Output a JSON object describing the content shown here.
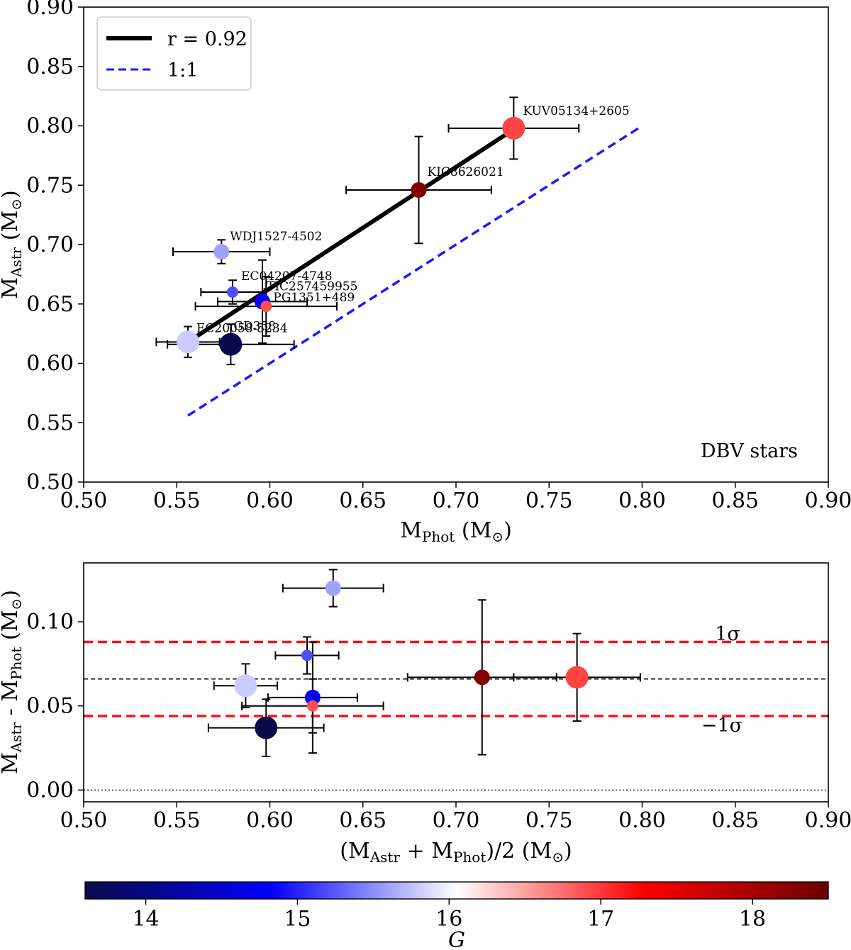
{
  "chart_data": [
    {
      "type": "scatter",
      "panel": "top",
      "xlabel": {
        "main": "M",
        "sub": "Phot",
        "unit": " (M",
        "unitsym": "⊙",
        "close": ")"
      },
      "ylabel": {
        "main": "M",
        "sub": "Astr",
        "unit": " (M",
        "unitsym": "⊙",
        "close": ")"
      },
      "xlim": [
        0.5,
        0.9
      ],
      "ylim": [
        0.5,
        0.9
      ],
      "xticks": [
        "0.50",
        "0.55",
        "0.60",
        "0.65",
        "0.70",
        "0.75",
        "0.80",
        "0.85",
        "0.90"
      ],
      "yticks": [
        "0.50",
        "0.55",
        "0.60",
        "0.65",
        "0.70",
        "0.75",
        "0.80",
        "0.85",
        "0.90"
      ],
      "annotation": "DBV stars",
      "legend": {
        "location": "top-left",
        "entries": [
          {
            "label": "r = 0.92",
            "style": "solid",
            "color": "#000000"
          },
          {
            "label": "1:1",
            "style": "dashed",
            "color": "#1a1aff"
          }
        ]
      },
      "fit_line": {
        "x": [
          0.556,
          0.731
        ],
        "y": [
          0.618,
          0.797
        ]
      },
      "one_to_one_line": {
        "x": [
          0.556,
          0.798
        ],
        "y": [
          0.556,
          0.798
        ]
      },
      "points": [
        {
          "name": "KUV05134+2605",
          "x": 0.731,
          "y": 0.798,
          "xerr": 0.035,
          "yerr": 0.026,
          "G": 16.95,
          "size": "large"
        },
        {
          "name": "KIC8626021",
          "x": 0.68,
          "y": 0.746,
          "xerr": 0.039,
          "yerr": 0.045,
          "G": 18.3,
          "size": "medium"
        },
        {
          "name": "WDJ1527-4502",
          "x": 0.574,
          "y": 0.694,
          "xerr": 0.026,
          "yerr": 0.01,
          "G": 15.6,
          "size": "medium"
        },
        {
          "name": "EC04207-4748",
          "x": 0.58,
          "y": 0.66,
          "xerr": 0.017,
          "yerr": 0.01,
          "G": 15.2,
          "size": "small"
        },
        {
          "name": "TIC257459955",
          "x": 0.596,
          "y": 0.652,
          "xerr": 0.024,
          "yerr": 0.035,
          "G": 14.8,
          "size": "medium"
        },
        {
          "name": "PG1351+489",
          "x": 0.598,
          "y": 0.648,
          "xerr": 0.038,
          "yerr": 0.025,
          "G": 16.9,
          "size": "small"
        },
        {
          "name": "EC20058-5234",
          "x": 0.556,
          "y": 0.618,
          "xerr": 0.017,
          "yerr": 0.013,
          "G": 15.8,
          "size": "large"
        },
        {
          "name": "GD358",
          "x": 0.579,
          "y": 0.616,
          "xerr": 0.034,
          "yerr": 0.017,
          "G": 13.6,
          "size": "large"
        }
      ]
    },
    {
      "type": "scatter",
      "panel": "bottom",
      "xlabel": {
        "main": "(M",
        "sub1": "Astr",
        "mid": " + M",
        "sub2": "Phot",
        "end": ")/2 (M",
        "unitsym": "⊙",
        "close": ")"
      },
      "ylabel": {
        "main": "M",
        "sub1": "Astr",
        "mid": " - M",
        "sub2": "Phot",
        "unit": " (M",
        "unitsym": "⊙",
        "close": ")"
      },
      "xlim": [
        0.5,
        0.9
      ],
      "ylim": [
        -0.007,
        0.135
      ],
      "xticks": [
        "0.50",
        "0.55",
        "0.60",
        "0.65",
        "0.70",
        "0.75",
        "0.80",
        "0.85",
        "0.90"
      ],
      "yticks": [
        "0.00",
        "0.05",
        "0.10"
      ],
      "mean_line": 0.066,
      "sigma_lines": {
        "plus": 0.088,
        "minus": 0.044
      },
      "zero_line": 0.0,
      "sigma_labels": {
        "plus": "1σ",
        "minus": "−1σ"
      },
      "points": [
        {
          "name": "KUV05134+2605",
          "x": 0.765,
          "y": 0.067,
          "xerr": 0.034,
          "yerr": 0.026,
          "G": 16.95,
          "size": "large"
        },
        {
          "name": "KIC8626021",
          "x": 0.714,
          "y": 0.067,
          "xerr": 0.04,
          "yerr": 0.046,
          "G": 18.3,
          "size": "medium"
        },
        {
          "name": "WDJ1527-4502",
          "x": 0.634,
          "y": 0.12,
          "xerr": 0.027,
          "yerr": 0.011,
          "G": 15.6,
          "size": "medium"
        },
        {
          "name": "EC04207-4748",
          "x": 0.62,
          "y": 0.08,
          "xerr": 0.017,
          "yerr": 0.011,
          "G": 15.2,
          "size": "small"
        },
        {
          "name": "TIC257459955",
          "x": 0.623,
          "y": 0.055,
          "xerr": 0.024,
          "yerr": 0.033,
          "G": 14.8,
          "size": "medium"
        },
        {
          "name": "PG1351+489",
          "x": 0.623,
          "y": 0.05,
          "xerr": 0.038,
          "yerr": 0.016,
          "G": 16.9,
          "size": "small"
        },
        {
          "name": "EC20058-5234",
          "x": 0.587,
          "y": 0.062,
          "xerr": 0.017,
          "yerr": 0.013,
          "G": 15.8,
          "size": "large"
        },
        {
          "name": "GD358",
          "x": 0.598,
          "y": 0.037,
          "xerr": 0.031,
          "yerr": 0.017,
          "G": 13.6,
          "size": "large"
        }
      ]
    }
  ],
  "colorbar": {
    "label": "G",
    "range": [
      13.6,
      18.5
    ],
    "ticks": [
      "14",
      "15",
      "16",
      "17",
      "18"
    ],
    "colormap": [
      "#0a0a4a",
      "#0000ff",
      "#ffffff",
      "#ff0000",
      "#6b0000"
    ]
  }
}
